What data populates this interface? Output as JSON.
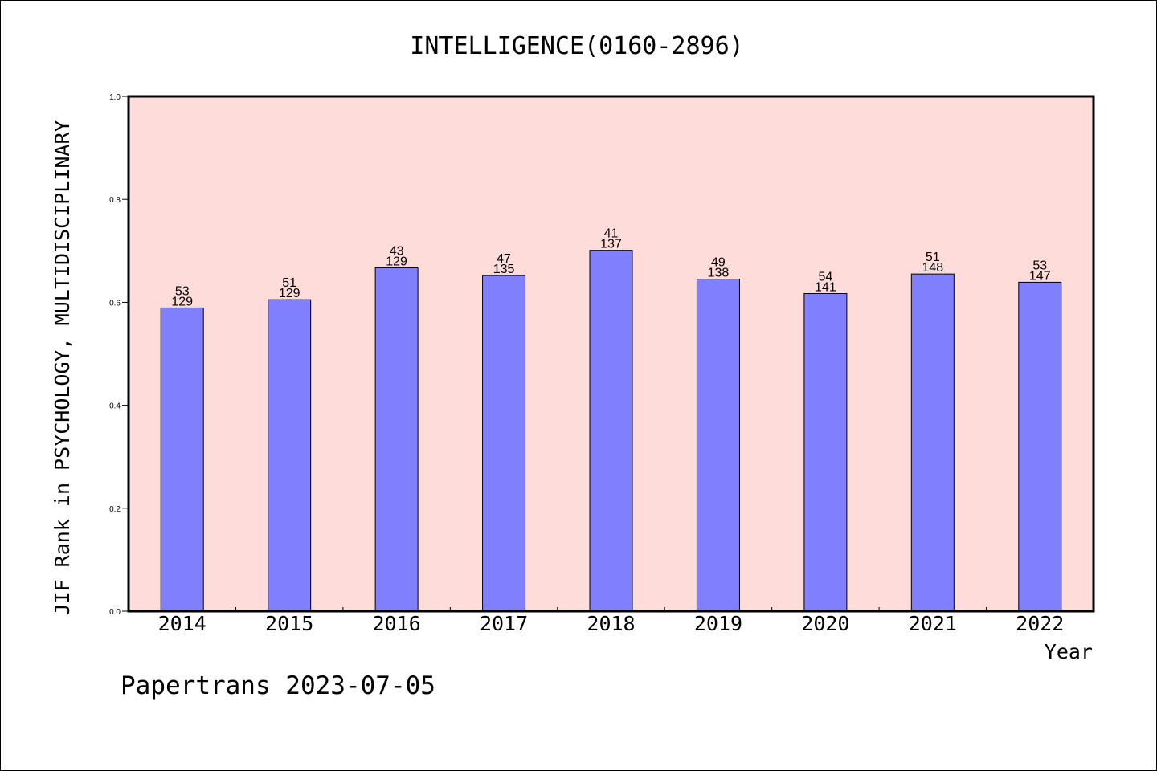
{
  "chart_data": {
    "type": "bar",
    "title": "INTELLIGENCE(0160-2896)",
    "xlabel": "Year",
    "ylabel": "JIF Rank in PSYCHOLOGY, MULTIDISCIPLINARY",
    "ylim": [
      0,
      1.0
    ],
    "yticks": [
      "0.0",
      "0.2",
      "0.4",
      "0.6",
      "0.8",
      "1.0"
    ],
    "categories": [
      "2014",
      "2015",
      "2016",
      "2017",
      "2018",
      "2019",
      "2020",
      "2021",
      "2022"
    ],
    "values": [
      0.589,
      0.605,
      0.667,
      0.652,
      0.701,
      0.645,
      0.617,
      0.655,
      0.639
    ],
    "rank": [
      "53",
      "51",
      "43",
      "47",
      "41",
      "49",
      "54",
      "51",
      "53"
    ],
    "total": [
      "129",
      "129",
      "129",
      "135",
      "137",
      "138",
      "141",
      "148",
      "147"
    ],
    "grid": false,
    "colors": {
      "bar": "#8080ff",
      "plot_bg": "#fddcd9",
      "axis": "#000000"
    }
  },
  "footer": "Papertrans 2023-07-05"
}
